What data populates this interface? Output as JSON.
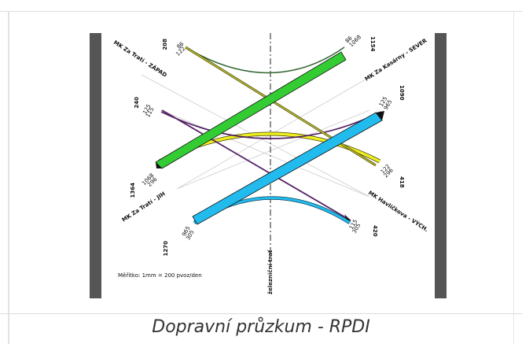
{
  "caption": "Dopravní průzkum - RPDI",
  "diagram": {
    "railway_label": "železniční trať",
    "scale_note": "Měřítko: 1mm = 200 pvoz/den",
    "arms": {
      "west": {
        "name": "MK Za Tratí - ZÁPAD",
        "total": "208",
        "in": "86",
        "out": "122"
      },
      "north": {
        "name": "MK Za Kasárny - SEVER",
        "total": "1154",
        "in": "86",
        "out": "1068"
      },
      "nw240": {
        "total": "240",
        "in": "125",
        "out": "115"
      },
      "ne1090": {
        "total": "1090",
        "in": "125",
        "out": "965"
      },
      "south": {
        "name": "MK Za Tratí - JIH",
        "total": "1364",
        "in": "1068",
        "out": "296"
      },
      "se418": {
        "total": "418",
        "in": "122",
        "out": "296"
      },
      "sw1270": {
        "total": "1270",
        "in": "965",
        "out": "305"
      },
      "east": {
        "name": "MK Havlíčkova - VÝCH.",
        "total": "420",
        "in": "115",
        "out": "305"
      }
    },
    "flows": [
      {
        "from": "MK Za Tratí - JIH",
        "to": "MK Za Kasárny - SEVER",
        "value": 1068,
        "color": "#33cc33"
      },
      {
        "from": "MK Za Tratí - JIH",
        "to": "MK Havlíčkova - VÝCH.",
        "value": 965,
        "color": "#22bbee"
      },
      {
        "from": "MK Za Tratí - JIH",
        "to": "MK Havlíčkova - VÝCH.",
        "value": 296,
        "color": "#eeee22"
      },
      {
        "from": "MK Za Tratí - ZÁPAD",
        "to": "MK Havlíčkova - VÝCH.",
        "value": 122,
        "color": "#999933"
      },
      {
        "from": "MK Za Tratí - ZÁPAD",
        "to": "MK Za Kasárny - SEVER",
        "value": 86,
        "color": "#336633"
      },
      {
        "from": "MK Za Tratí - ZÁPAD",
        "to": "MK Havlíčkova - VÝCH.",
        "value": 125,
        "color": "#552266"
      },
      {
        "from": "MK Za Tratí - ZÁPAD",
        "to": "MK Havlíčkova - VÝCH.",
        "value": 115,
        "color": "#552266"
      }
    ]
  }
}
